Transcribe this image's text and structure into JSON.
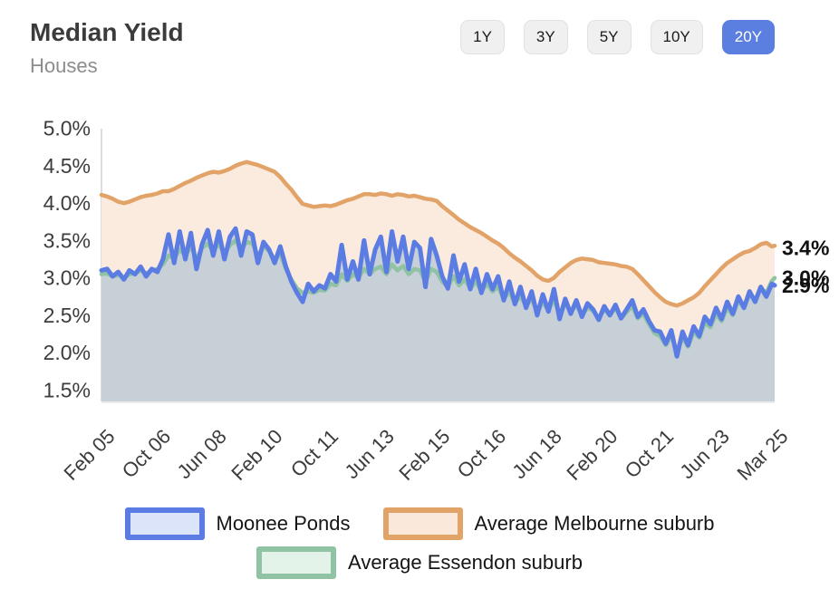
{
  "header": {
    "title": "Median Yield",
    "subtitle": "Houses"
  },
  "range_buttons": {
    "options": [
      "1Y",
      "3Y",
      "5Y",
      "10Y",
      "20Y"
    ],
    "active": "20Y",
    "active_index": 4
  },
  "chart_data": {
    "type": "area",
    "title": "Median Yield",
    "subtitle": "Houses",
    "unit": "%",
    "grid": false,
    "legend_position": "bottom",
    "ylim": [
      1.35,
      5.0
    ],
    "y_axis": {
      "tick_values": [
        5.0,
        4.5,
        4.0,
        3.5,
        3.0,
        2.5,
        2.0,
        1.5
      ],
      "tick_labels": [
        "5.0%",
        "4.5%",
        "4.0%",
        "3.5%",
        "3.0%",
        "2.5%",
        "2.0%",
        "1.5%"
      ]
    },
    "x_axis": {
      "start": "Feb 2005",
      "end": "Mar 2025",
      "total_months": 241,
      "month_step": 2,
      "ticks": [
        {
          "label": "Feb 05",
          "month": 0
        },
        {
          "label": "Oct 06",
          "month": 20
        },
        {
          "label": "Jun 08",
          "month": 40
        },
        {
          "label": "Feb 10",
          "month": 60
        },
        {
          "label": "Oct 11",
          "month": 80
        },
        {
          "label": "Jun 13",
          "month": 100
        },
        {
          "label": "Feb 15",
          "month": 120
        },
        {
          "label": "Oct 16",
          "month": 140
        },
        {
          "label": "Jun 18",
          "month": 160
        },
        {
          "label": "Feb 20",
          "month": 180
        },
        {
          "label": "Oct 21",
          "month": 200
        },
        {
          "label": "Jun 23",
          "month": 220
        },
        {
          "label": "Mar 25",
          "month": 241
        }
      ]
    },
    "series": [
      {
        "name": "Moonee Ponds",
        "color": "#5b7ce2",
        "fill_color": "#c7cfd7",
        "legend_fill": "#dce4f9",
        "end_label": "2.9%",
        "end_value": 2.9,
        "values": [
          3.1,
          3.12,
          3.02,
          3.08,
          2.98,
          3.1,
          3.05,
          3.15,
          3.02,
          3.12,
          3.08,
          3.25,
          3.58,
          3.2,
          3.62,
          3.25,
          3.6,
          3.12,
          3.45,
          3.64,
          3.3,
          3.62,
          3.25,
          3.55,
          3.66,
          3.3,
          3.62,
          3.58,
          3.2,
          3.48,
          3.38,
          3.2,
          3.42,
          3.15,
          2.95,
          2.8,
          2.68,
          2.92,
          2.82,
          2.9,
          2.86,
          3.05,
          2.95,
          3.44,
          2.98,
          3.22,
          2.98,
          3.5,
          3.05,
          3.38,
          3.55,
          3.08,
          3.62,
          3.22,
          3.55,
          3.12,
          3.48,
          3.4,
          2.88,
          3.52,
          3.3,
          3.02,
          2.86,
          3.3,
          2.95,
          3.18,
          2.85,
          3.12,
          2.8,
          3.05,
          2.85,
          3.02,
          2.7,
          2.95,
          2.65,
          2.88,
          2.6,
          2.82,
          2.5,
          2.78,
          2.55,
          2.85,
          2.45,
          2.72,
          2.52,
          2.7,
          2.48,
          2.66,
          2.58,
          2.44,
          2.62,
          2.5,
          2.64,
          2.46,
          2.58,
          2.7,
          2.48,
          2.58,
          2.42,
          2.3,
          2.28,
          2.12,
          2.3,
          1.95,
          2.28,
          2.1,
          2.35,
          2.22,
          2.48,
          2.38,
          2.6,
          2.45,
          2.68,
          2.52,
          2.75,
          2.6,
          2.82,
          2.68,
          2.88,
          2.75,
          2.92,
          2.9
        ]
      },
      {
        "name": "Average Melbourne suburb",
        "color": "#e2a369",
        "fill_color": "#faebde",
        "legend_fill": "#fae9da",
        "end_label": "3.4%",
        "end_value": 3.4,
        "values": [
          4.11,
          4.09,
          4.06,
          4.02,
          4.0,
          4.02,
          4.05,
          4.08,
          4.1,
          4.11,
          4.13,
          4.16,
          4.16,
          4.19,
          4.23,
          4.27,
          4.3,
          4.34,
          4.37,
          4.4,
          4.42,
          4.41,
          4.43,
          4.46,
          4.5,
          4.53,
          4.55,
          4.53,
          4.51,
          4.48,
          4.45,
          4.42,
          4.35,
          4.26,
          4.18,
          4.08,
          3.99,
          3.97,
          3.95,
          3.96,
          3.97,
          3.96,
          3.98,
          4.01,
          4.04,
          4.06,
          4.09,
          4.12,
          4.12,
          4.11,
          4.13,
          4.12,
          4.1,
          4.12,
          4.11,
          4.09,
          4.1,
          4.08,
          4.06,
          4.05,
          4.03,
          3.96,
          3.9,
          3.84,
          3.78,
          3.73,
          3.68,
          3.64,
          3.6,
          3.55,
          3.5,
          3.46,
          3.4,
          3.33,
          3.27,
          3.22,
          3.16,
          3.1,
          3.03,
          2.98,
          2.96,
          3.0,
          3.08,
          3.14,
          3.2,
          3.24,
          3.26,
          3.25,
          3.24,
          3.21,
          3.2,
          3.19,
          3.18,
          3.16,
          3.15,
          3.12,
          3.05,
          2.97,
          2.89,
          2.81,
          2.74,
          2.68,
          2.65,
          2.63,
          2.66,
          2.7,
          2.74,
          2.8,
          2.89,
          2.97,
          3.05,
          3.13,
          3.2,
          3.25,
          3.3,
          3.34,
          3.36,
          3.4,
          3.45,
          3.47,
          3.42,
          3.43
        ]
      },
      {
        "name": "Average Essendon suburb",
        "color": "#8fc3a3",
        "fill_color": "#d9ebdf",
        "legend_fill": "#e3f3e9",
        "end_label": "3.0%",
        "end_value": 3.0,
        "values": [
          3.05,
          3.06,
          3.02,
          3.04,
          3.0,
          3.05,
          3.06,
          3.1,
          3.06,
          3.1,
          3.12,
          3.18,
          3.3,
          3.26,
          3.38,
          3.3,
          3.42,
          3.25,
          3.4,
          3.46,
          3.36,
          3.46,
          3.32,
          3.44,
          3.5,
          3.38,
          3.48,
          3.46,
          3.3,
          3.42,
          3.36,
          3.25,
          3.32,
          3.12,
          2.98,
          2.86,
          2.8,
          2.82,
          2.8,
          2.84,
          2.83,
          2.92,
          2.9,
          3.05,
          2.96,
          3.05,
          3.0,
          3.12,
          3.05,
          3.12,
          3.15,
          3.05,
          3.18,
          3.1,
          3.16,
          3.05,
          3.12,
          3.1,
          2.95,
          3.12,
          3.08,
          2.95,
          2.88,
          3.02,
          2.9,
          2.98,
          2.86,
          2.95,
          2.82,
          2.92,
          2.82,
          2.88,
          2.72,
          2.82,
          2.66,
          2.76,
          2.62,
          2.72,
          2.54,
          2.68,
          2.56,
          2.72,
          2.5,
          2.66,
          2.54,
          2.64,
          2.5,
          2.6,
          2.56,
          2.46,
          2.58,
          2.5,
          2.6,
          2.46,
          2.54,
          2.62,
          2.46,
          2.52,
          2.38,
          2.26,
          2.22,
          2.1,
          2.22,
          2.02,
          2.2,
          2.08,
          2.28,
          2.2,
          2.4,
          2.34,
          2.52,
          2.42,
          2.6,
          2.5,
          2.7,
          2.6,
          2.78,
          2.7,
          2.86,
          2.8,
          2.96,
          3.0
        ]
      }
    ],
    "axis_color": "#dcdcdc",
    "tick_label_color": "#3c3c3c",
    "end_label_color": "#111111"
  },
  "legend": {
    "rows": [
      [
        0,
        1
      ],
      [
        2
      ]
    ]
  }
}
